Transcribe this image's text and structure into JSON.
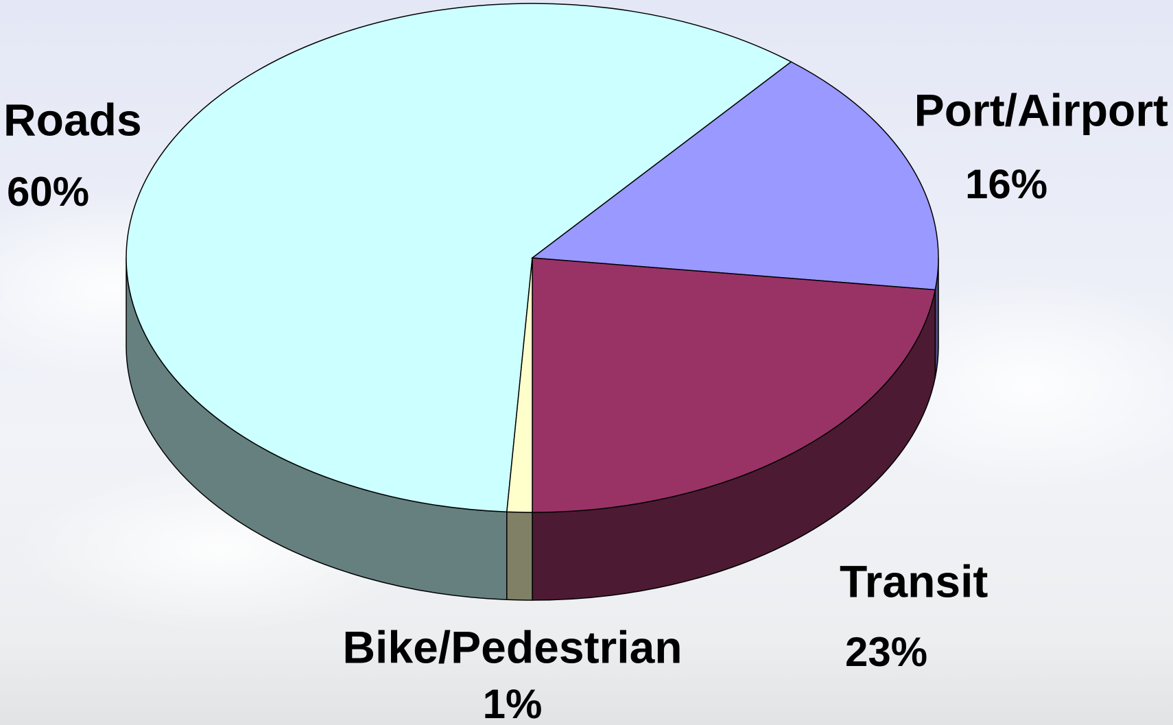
{
  "chart_data": {
    "type": "pie",
    "categories": [
      "Roads",
      "Port/Airport",
      "Transit",
      "Bike/Pedestrian"
    ],
    "values": [
      60,
      16,
      23,
      1
    ],
    "value_labels": [
      "60%",
      "16%",
      "23%",
      "1%"
    ],
    "colors": [
      "#ccffff",
      "#9999ff",
      "#993366",
      "#ffffcc"
    ]
  }
}
